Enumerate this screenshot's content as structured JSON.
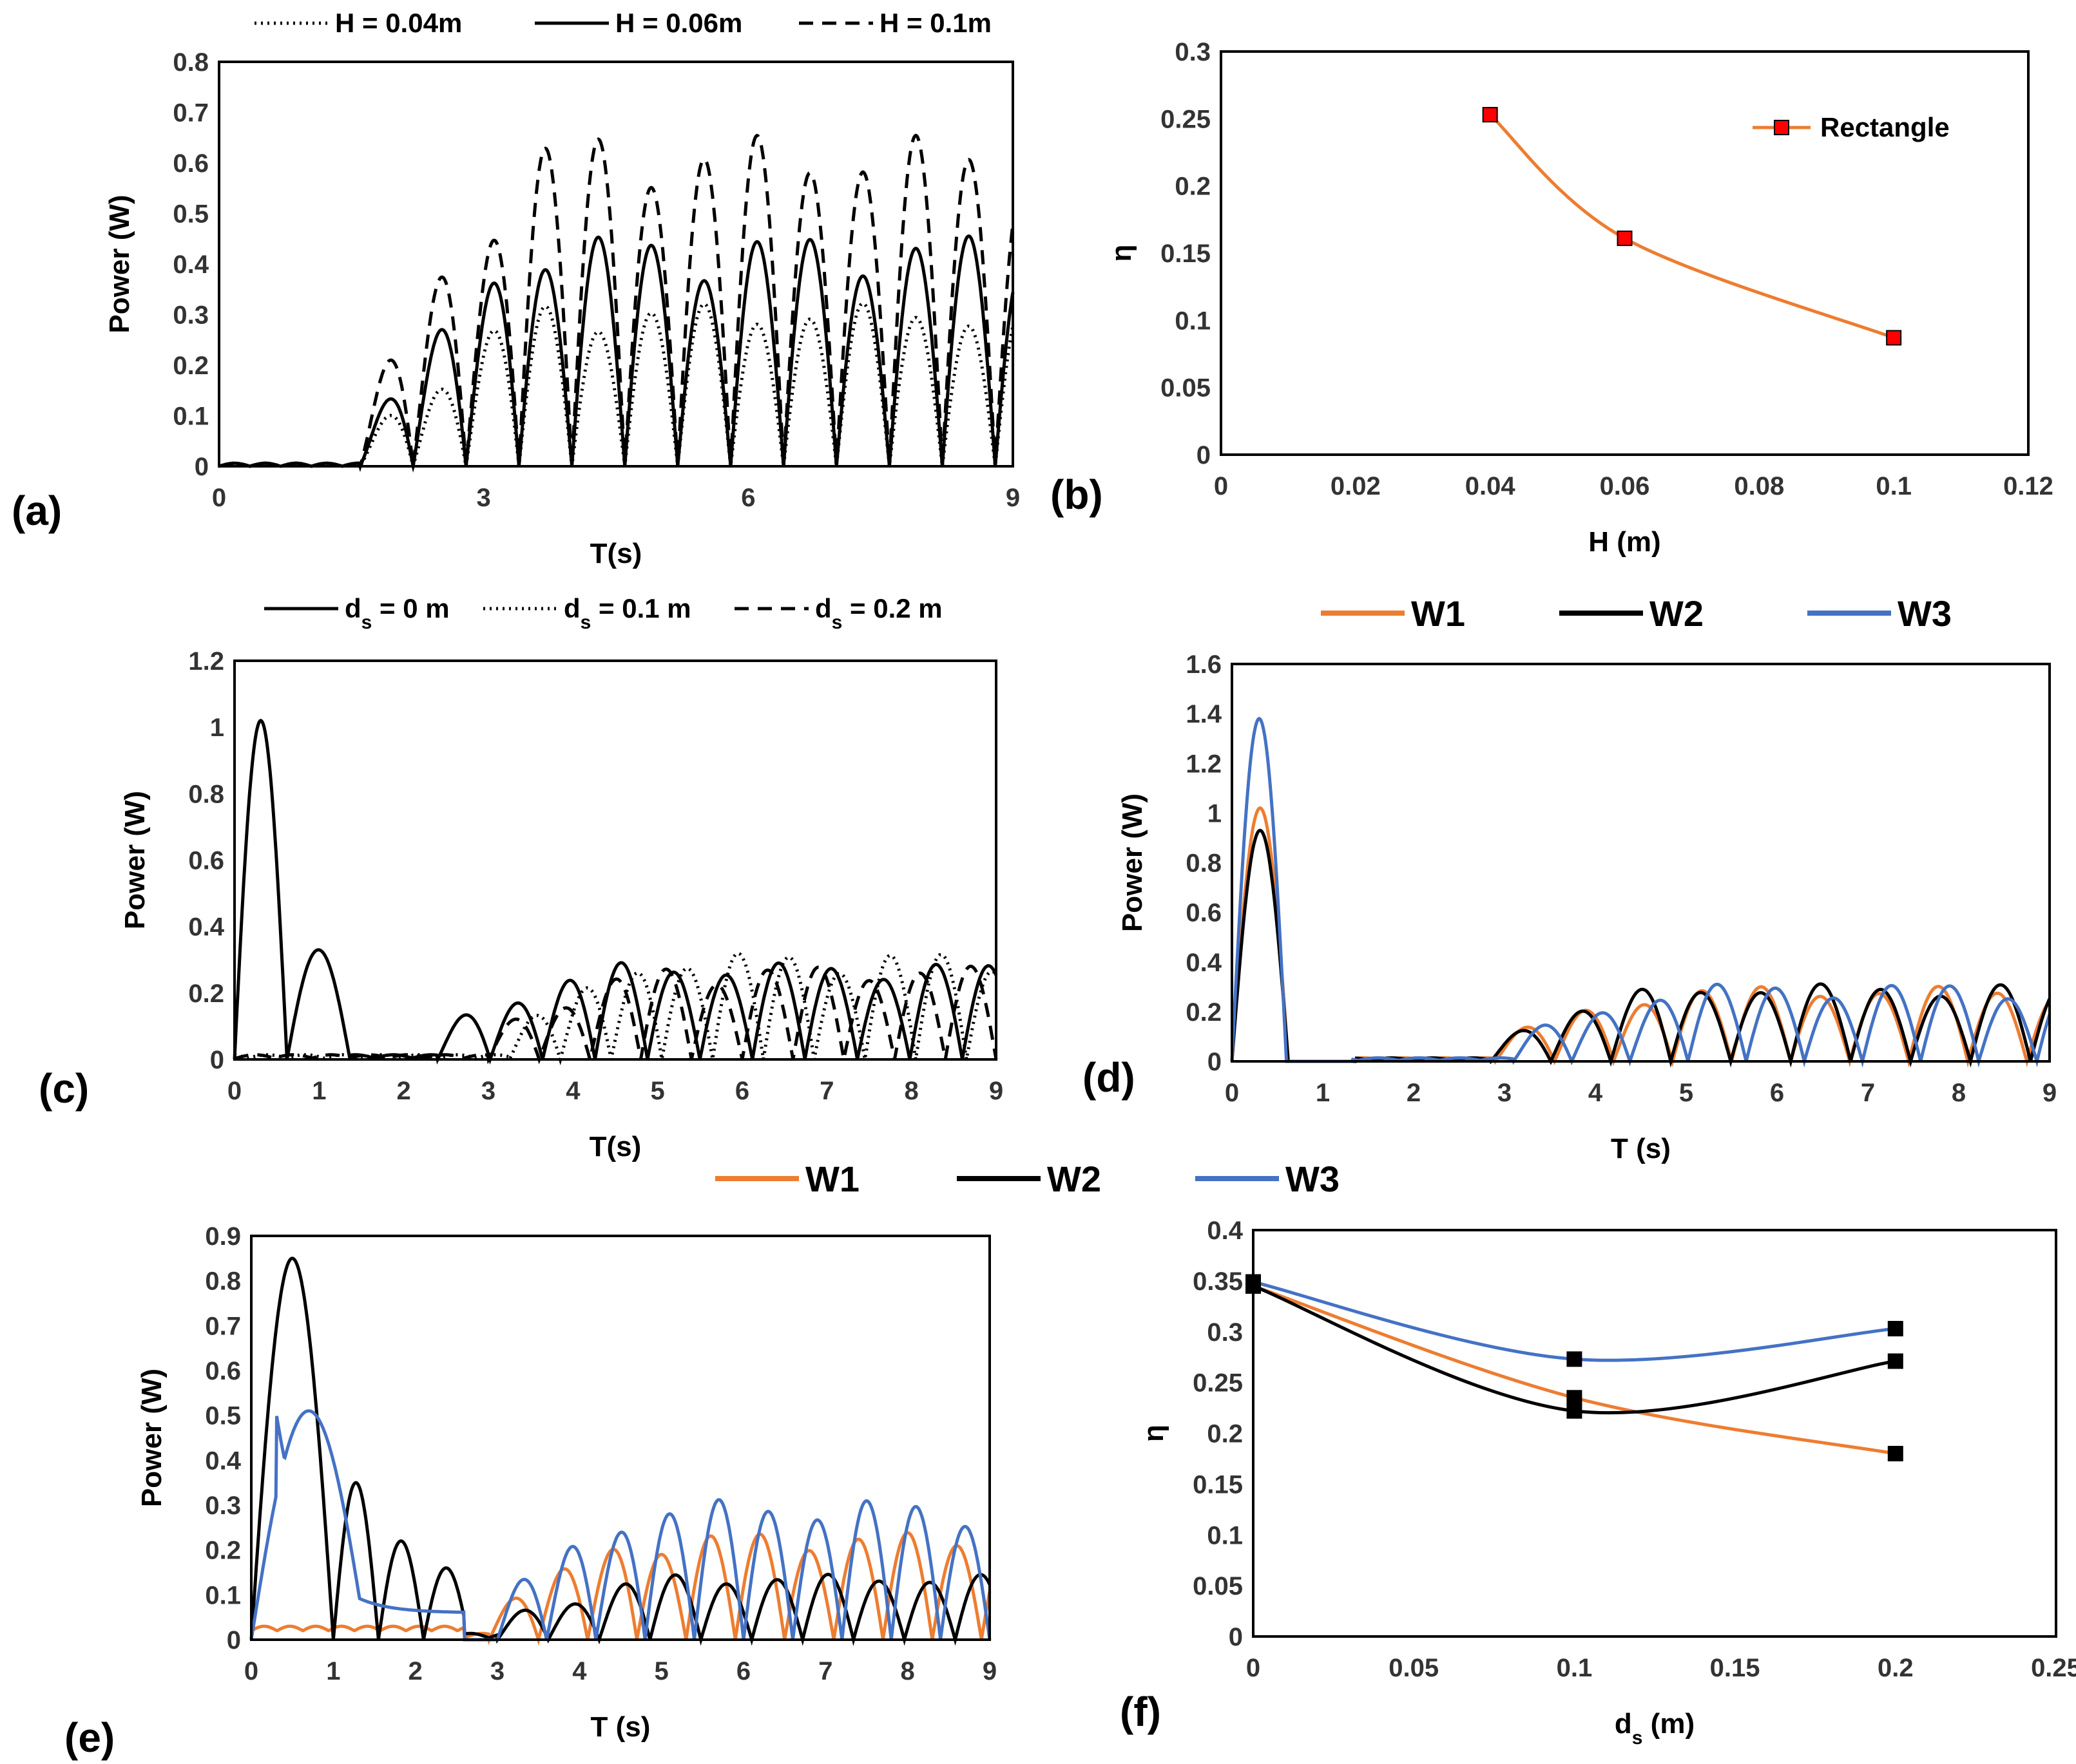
{
  "chart_data": [
    {
      "id": "a",
      "type": "line",
      "panel_label": "(a)",
      "xlabel": "T(s)",
      "ylabel": "Power (W)",
      "xlim": [
        0,
        9
      ],
      "ylim": [
        0,
        0.8
      ],
      "xticks": [
        "0",
        "3",
        "6",
        "9"
      ],
      "yticks": [
        "0",
        "0.1",
        "0.2",
        "0.3",
        "0.4",
        "0.5",
        "0.6",
        "0.7",
        "0.8"
      ],
      "legend_position": "top",
      "series": [
        {
          "name": "H = 0.04m",
          "style": "dotted",
          "color": "#000000",
          "amplitude": 0.31,
          "onset": 1.6,
          "period": 1.2
        },
        {
          "name": "H = 0.06m",
          "style": "solid",
          "color": "#000000",
          "amplitude": 0.44,
          "onset": 1.6,
          "period": 1.2
        },
        {
          "name": "H = 0.1m",
          "style": "dashed",
          "color": "#000000",
          "amplitude": 0.63,
          "onset": 1.6,
          "period": 1.2
        }
      ]
    },
    {
      "id": "b",
      "type": "scatter",
      "panel_label": "(b)",
      "xlabel": "H (m)",
      "ylabel": "η",
      "xlim": [
        0,
        0.12
      ],
      "ylim": [
        0,
        0.3
      ],
      "xticks": [
        "0",
        "0.02",
        "0.04",
        "0.06",
        "0.08",
        "0.1",
        "0.12"
      ],
      "yticks": [
        "0",
        "0.05",
        "0.1",
        "0.15",
        "0.2",
        "0.25",
        "0.3"
      ],
      "legend_position": "top-right",
      "series": [
        {
          "name": "Rectangle",
          "color": "#ed7d31",
          "marker": "#ff0000",
          "x": [
            0.04,
            0.06,
            0.1
          ],
          "y": [
            0.253,
            0.161,
            0.087
          ]
        }
      ]
    },
    {
      "id": "c",
      "type": "line",
      "panel_label": "(c)",
      "xlabel": "T(s)",
      "ylabel": "Power (W)",
      "xlim": [
        0,
        9
      ],
      "ylim": [
        0,
        1.2
      ],
      "xticks": [
        "0",
        "1",
        "2",
        "3",
        "4",
        "5",
        "6",
        "7",
        "8",
        "9"
      ],
      "yticks": [
        "0",
        "0.2",
        "0.4",
        "0.6",
        "0.8",
        "1",
        "1.2"
      ],
      "legend_position": "top",
      "series": [
        {
          "name": "d_s = 0 m",
          "style": "solid",
          "color": "#000000",
          "first_peak": 1.02,
          "second_peak": 0.33,
          "amplitude": 0.28
        },
        {
          "name": "d_s = 0.1 m",
          "style": "dotted",
          "color": "#000000",
          "amplitude": 0.31
        },
        {
          "name": "d_s = 0.2 m",
          "style": "dashed",
          "color": "#000000",
          "amplitude": 0.27
        }
      ]
    },
    {
      "id": "d",
      "type": "line",
      "panel_label": "(d)",
      "xlabel": "T (s)",
      "ylabel": "Power (W)",
      "xlim": [
        0,
        9
      ],
      "ylim": [
        0,
        1.6
      ],
      "xticks": [
        "0",
        "1",
        "2",
        "3",
        "4",
        "5",
        "6",
        "7",
        "8",
        "9"
      ],
      "yticks": [
        "0",
        "0.2",
        "0.4",
        "0.6",
        "0.8",
        "1",
        "1.2",
        "1.4",
        "1.6"
      ],
      "legend_position": "top",
      "series": [
        {
          "name": "W1",
          "style": "solid",
          "color": "#ed7d31",
          "first_peak": 1.02,
          "amplitude": 0.29
        },
        {
          "name": "W2",
          "style": "solid",
          "color": "#000000",
          "first_peak": 0.93,
          "amplitude": 0.3
        },
        {
          "name": "W3",
          "style": "solid",
          "color": "#4472c4",
          "first_peak": 1.38,
          "amplitude": 0.3
        }
      ]
    },
    {
      "id": "e",
      "type": "line",
      "panel_label": "(e)",
      "xlabel": "T (s)",
      "ylabel": "Power (W)",
      "xlim": [
        0,
        9
      ],
      "ylim": [
        0,
        0.9
      ],
      "xticks": [
        "0",
        "1",
        "2",
        "3",
        "4",
        "5",
        "6",
        "7",
        "8",
        "9"
      ],
      "yticks": [
        "0",
        "0.1",
        "0.2",
        "0.3",
        "0.4",
        "0.5",
        "0.6",
        "0.7",
        "0.8",
        "0.9"
      ],
      "legend_position": "top",
      "series": [
        {
          "name": "W1",
          "style": "solid",
          "color": "#ed7d31",
          "amplitude": 0.23
        },
        {
          "name": "W2",
          "style": "solid",
          "color": "#000000",
          "first_peak": 0.85,
          "amplitude": 0.14
        },
        {
          "name": "W3",
          "style": "solid",
          "color": "#4472c4",
          "first_peak": 0.51,
          "amplitude": 0.3
        }
      ]
    },
    {
      "id": "f",
      "type": "scatter",
      "panel_label": "(f)",
      "xlabel": "d_s (m)",
      "ylabel": "η",
      "xlim": [
        0,
        0.25
      ],
      "ylim": [
        0,
        0.4
      ],
      "xticks": [
        "0",
        "0.05",
        "0.1",
        "0.15",
        "0.2",
        "0.25"
      ],
      "yticks": [
        "0",
        "0.05",
        "0.1",
        "0.15",
        "0.2",
        "0.25",
        "0.3",
        "0.35",
        "0.4"
      ],
      "series": [
        {
          "name": "W1",
          "color": "#ed7d31",
          "marker": "#000000",
          "x": [
            0,
            0.1,
            0.2
          ],
          "y": [
            0.345,
            0.235,
            0.18
          ]
        },
        {
          "name": "W2",
          "color": "#000000",
          "marker": "#000000",
          "x": [
            0,
            0.1,
            0.2
          ],
          "y": [
            0.345,
            0.222,
            0.271
          ]
        },
        {
          "name": "W3",
          "color": "#4472c4",
          "marker": "#000000",
          "x": [
            0,
            0.1,
            0.2
          ],
          "y": [
            0.349,
            0.273,
            0.303
          ]
        }
      ]
    }
  ]
}
